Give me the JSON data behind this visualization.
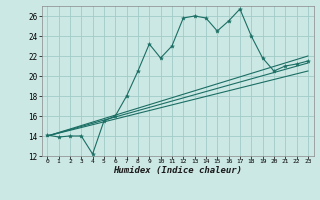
{
  "xlabel": "Humidex (Indice chaleur)",
  "bg_color": "#cce8e4",
  "grid_color": "#a0ccc8",
  "line_color": "#1a6e64",
  "xlim": [
    -0.5,
    23.5
  ],
  "ylim": [
    12,
    27
  ],
  "xticks": [
    0,
    1,
    2,
    3,
    4,
    5,
    6,
    7,
    8,
    9,
    10,
    11,
    12,
    13,
    14,
    15,
    16,
    17,
    18,
    19,
    20,
    21,
    22,
    23
  ],
  "yticks": [
    12,
    14,
    16,
    18,
    20,
    22,
    24,
    26
  ],
  "main_x": [
    0,
    1,
    2,
    3,
    4,
    5,
    6,
    7,
    8,
    9,
    10,
    11,
    12,
    13,
    14,
    15,
    16,
    17,
    18,
    19,
    20,
    21,
    22,
    23
  ],
  "main_y": [
    14.1,
    13.9,
    14.0,
    14.0,
    12.2,
    15.5,
    16.0,
    18.0,
    20.5,
    23.2,
    21.8,
    23.0,
    25.8,
    26.0,
    25.8,
    24.5,
    25.5,
    26.7,
    24.0,
    21.8,
    20.5,
    21.0,
    21.2,
    21.5
  ],
  "line2_x": [
    0,
    23
  ],
  "line2_y": [
    14.0,
    20.5
  ],
  "line3_x": [
    0,
    23
  ],
  "line3_y": [
    14.0,
    21.3
  ],
  "line4_x": [
    0,
    23
  ],
  "line4_y": [
    14.0,
    22.0
  ]
}
